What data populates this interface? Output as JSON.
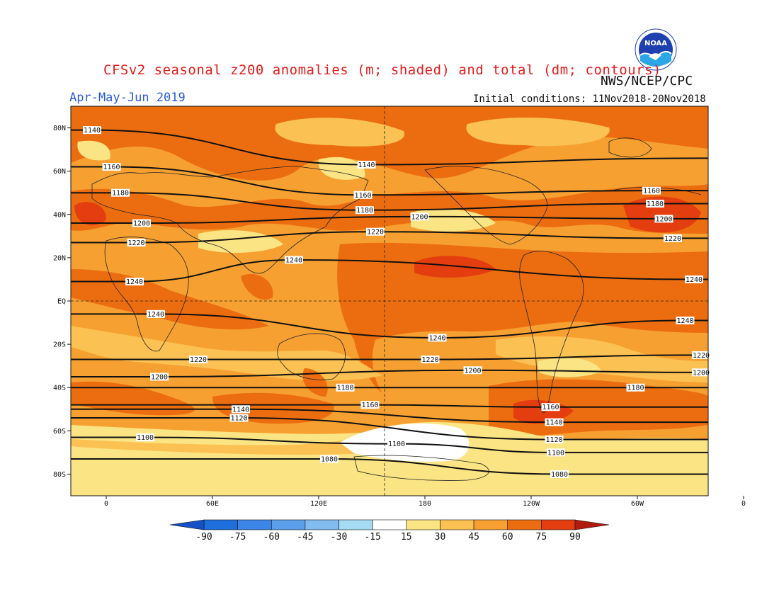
{
  "header": {
    "title": "CFSv2 seasonal z200 anomalies (m; shaded) and total (dm; contours)",
    "agency": "NWS/NCEP/CPC",
    "period": "Apr-May-Jun 2019",
    "initial_conditions": "Initial conditions: 11Nov2018-20Nov2018",
    "logo_text": "NOAA"
  },
  "axes": {
    "lat_labels": [
      "80N",
      "60N",
      "40N",
      "20N",
      "EQ",
      "20S",
      "40S",
      "60S",
      "80S"
    ],
    "lon_labels": [
      "0",
      "60E",
      "120E",
      "180",
      "120W",
      "60W",
      "0"
    ]
  },
  "colorbar": {
    "labels": [
      "-90",
      "-75",
      "-60",
      "-45",
      "-30",
      "-15",
      "15",
      "30",
      "45",
      "60",
      "75",
      "90"
    ],
    "colors": [
      "#1e6edb",
      "#3b86e6",
      "#5b9eea",
      "#82bcef",
      "#a6dbf4",
      "#c6f2f8",
      "#ffffff",
      "#fbe483",
      "#fbc152",
      "#f6a031",
      "#ec6d10",
      "#e43d0f",
      "#c7230d"
    ],
    "left_arrow_color": "#1550c7",
    "right_arrow_color": "#b11c0e"
  },
  "contours": [
    {
      "label": "1140",
      "segments": [
        {
          "lon": -8,
          "lat": 79
        },
        {
          "lon": 147,
          "lat": 63
        },
        {
          "lon": 339,
          "lat": 66
        }
      ]
    },
    {
      "label": "1160",
      "segments": [
        {
          "lon": 3,
          "lat": 62
        },
        {
          "lon": 145,
          "lat": 49
        },
        {
          "lon": 308,
          "lat": 51
        }
      ]
    },
    {
      "label": "1180",
      "segments": [
        {
          "lon": 8,
          "lat": 50
        },
        {
          "lon": 146,
          "lat": 42
        },
        {
          "lon": 310,
          "lat": 45
        }
      ]
    },
    {
      "label": "1200",
      "segments": [
        {
          "lon": 20,
          "lat": 36
        },
        {
          "lon": 177,
          "lat": 39
        },
        {
          "lon": 315,
          "lat": 38
        }
      ]
    },
    {
      "label": "1220",
      "segments": [
        {
          "lon": 17,
          "lat": 27
        },
        {
          "lon": 152,
          "lat": 32
        },
        {
          "lon": 320,
          "lat": 29
        }
      ]
    },
    {
      "label": "1240",
      "segments": [
        {
          "lon": 16,
          "lat": 9
        },
        {
          "lon": 106,
          "lat": 19
        },
        {
          "lon": 332,
          "lat": 10
        }
      ]
    },
    {
      "label": "1240",
      "segments": [
        {
          "lon": 28,
          "lat": -6
        },
        {
          "lon": 187,
          "lat": -17
        },
        {
          "lon": 327,
          "lat": -9
        }
      ]
    },
    {
      "label": "1220",
      "segments": [
        {
          "lon": 52,
          "lat": -27
        },
        {
          "lon": 183,
          "lat": -27
        },
        {
          "lon": 336,
          "lat": -25
        }
      ]
    },
    {
      "label": "1200",
      "segments": [
        {
          "lon": 30,
          "lat": -35
        },
        {
          "lon": 207,
          "lat": -32
        },
        {
          "lon": 336,
          "lat": -33
        }
      ]
    },
    {
      "label": "1180",
      "segments": [
        {
          "lon": 135,
          "lat": -40
        },
        {
          "lon": 299,
          "lat": -40
        }
      ]
    },
    {
      "label": "1160",
      "segments": [
        {
          "lon": 149,
          "lat": -48
        },
        {
          "lon": 251,
          "lat": -49
        }
      ]
    },
    {
      "label": "1140",
      "segments": [
        {
          "lon": 76,
          "lat": -50
        },
        {
          "lon": 253,
          "lat": -56
        }
      ]
    },
    {
      "label": "1120",
      "segments": [
        {
          "lon": 75,
          "lat": -54
        },
        {
          "lon": 253,
          "lat": -64
        }
      ]
    },
    {
      "label": "1100",
      "segments": [
        {
          "lon": 22,
          "lat": -63
        },
        {
          "lon": 164,
          "lat": -66
        },
        {
          "lon": 254,
          "lat": -70
        }
      ]
    },
    {
      "label": "1080",
      "segments": [
        {
          "lon": 126,
          "lat": -73
        },
        {
          "lon": 256,
          "lat": -80
        }
      ]
    }
  ]
}
